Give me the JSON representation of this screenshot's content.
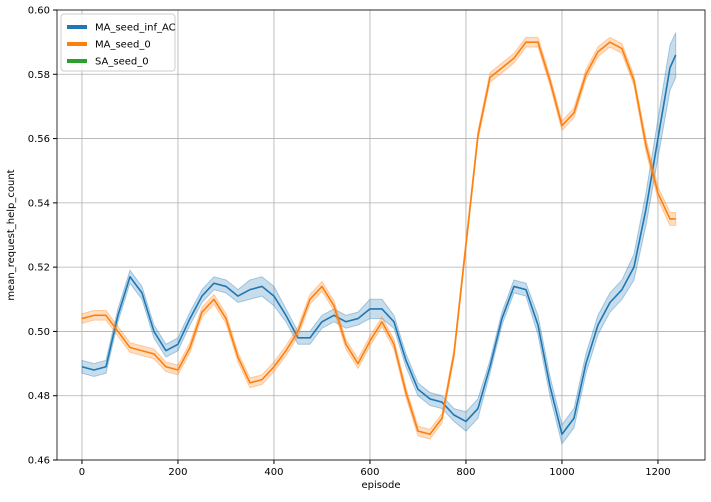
{
  "chart_data": {
    "type": "line",
    "x_label": "episode",
    "y_label": "mean_request_help_count",
    "x": [
      0,
      25,
      50,
      75,
      100,
      125,
      150,
      175,
      200,
      225,
      250,
      275,
      300,
      325,
      350,
      375,
      400,
      425,
      450,
      475,
      500,
      525,
      550,
      575,
      600,
      625,
      650,
      675,
      700,
      725,
      750,
      775,
      800,
      825,
      850,
      875,
      900,
      925,
      950,
      975,
      1000,
      1025,
      1050,
      1075,
      1100,
      1125,
      1150,
      1175,
      1200,
      1225,
      1237
    ],
    "series": [
      {
        "name": "MA_seed_inf_AC",
        "color": "#1f77b4",
        "values": [
          0.489,
          0.488,
          0.489,
          0.505,
          0.517,
          0.512,
          0.5,
          0.494,
          0.496,
          0.504,
          0.511,
          0.515,
          0.514,
          0.511,
          0.513,
          0.514,
          0.511,
          0.505,
          0.498,
          0.498,
          0.503,
          0.505,
          0.503,
          0.504,
          0.507,
          0.507,
          0.503,
          0.491,
          0.482,
          0.479,
          0.478,
          0.474,
          0.472,
          0.476,
          0.489,
          0.504,
          0.514,
          0.513,
          0.502,
          0.483,
          0.468,
          0.473,
          0.49,
          0.502,
          0.509,
          0.513,
          0.52,
          0.538,
          0.56,
          0.582,
          0.586
        ],
        "errors": [
          0.002,
          0.002,
          0.002,
          0.002,
          0.002,
          0.002,
          0.002,
          0.002,
          0.002,
          0.002,
          0.002,
          0.002,
          0.002,
          0.002,
          0.003,
          0.003,
          0.003,
          0.002,
          0.002,
          0.002,
          0.002,
          0.002,
          0.002,
          0.002,
          0.003,
          0.003,
          0.002,
          0.002,
          0.002,
          0.002,
          0.002,
          0.002,
          0.003,
          0.003,
          0.002,
          0.002,
          0.002,
          0.002,
          0.003,
          0.003,
          0.003,
          0.003,
          0.003,
          0.003,
          0.003,
          0.003,
          0.004,
          0.005,
          0.006,
          0.007,
          0.007
        ]
      },
      {
        "name": "MA_seed_0",
        "color": "#ff7f0e",
        "values": [
          0.504,
          0.505,
          0.505,
          0.5,
          0.495,
          0.494,
          0.493,
          0.489,
          0.488,
          0.495,
          0.506,
          0.51,
          0.504,
          0.492,
          0.484,
          0.485,
          0.489,
          0.494,
          0.5,
          0.51,
          0.514,
          0.508,
          0.496,
          0.49,
          0.497,
          0.503,
          0.496,
          0.481,
          0.469,
          0.468,
          0.473,
          0.493,
          0.527,
          0.561,
          0.579,
          0.582,
          0.585,
          0.59,
          0.59,
          0.578,
          0.564,
          0.568,
          0.58,
          0.587,
          0.59,
          0.588,
          0.578,
          0.558,
          0.543,
          0.535,
          0.535
        ],
        "errors": [
          0.0015,
          0.0015,
          0.0015,
          0.0015,
          0.0015,
          0.0015,
          0.0015,
          0.0015,
          0.0015,
          0.0015,
          0.0015,
          0.0015,
          0.0015,
          0.0015,
          0.0015,
          0.0015,
          0.0015,
          0.0015,
          0.0015,
          0.0015,
          0.0015,
          0.0015,
          0.0015,
          0.0015,
          0.0015,
          0.0015,
          0.0015,
          0.0015,
          0.0015,
          0.0015,
          0.0015,
          0.0015,
          0.0015,
          0.0015,
          0.0015,
          0.0015,
          0.0015,
          0.0015,
          0.0015,
          0.0015,
          0.0015,
          0.0015,
          0.0015,
          0.0015,
          0.0015,
          0.0015,
          0.0015,
          0.002,
          0.002,
          0.002,
          0.002
        ]
      },
      {
        "name": "SA_seed_0",
        "color": "#2ca02c",
        "values": [
          null,
          null,
          null,
          null,
          null,
          null,
          null,
          null,
          null,
          null,
          null,
          null,
          null,
          null,
          null,
          null,
          null,
          null,
          null,
          null,
          null,
          null,
          null,
          null,
          null,
          null,
          null,
          null,
          null,
          null,
          null,
          null,
          null,
          null,
          null,
          null,
          null,
          null,
          null,
          null,
          null,
          null,
          null,
          null,
          null,
          null,
          null,
          null,
          null,
          null,
          null
        ]
      }
    ],
    "xlim": [
      -52,
      1298
    ],
    "ylim": [
      0.46,
      0.6
    ],
    "xticks": [
      0,
      200,
      400,
      600,
      800,
      1000,
      1200
    ],
    "yticks": [
      0.46,
      0.48,
      {
        "value": 0.5,
        "label": "0.50"
      },
      0.52,
      0.54,
      0.56,
      0.58,
      {
        "value": 0.6,
        "label": "0.60"
      }
    ],
    "grid": true,
    "legend": "upper left"
  }
}
